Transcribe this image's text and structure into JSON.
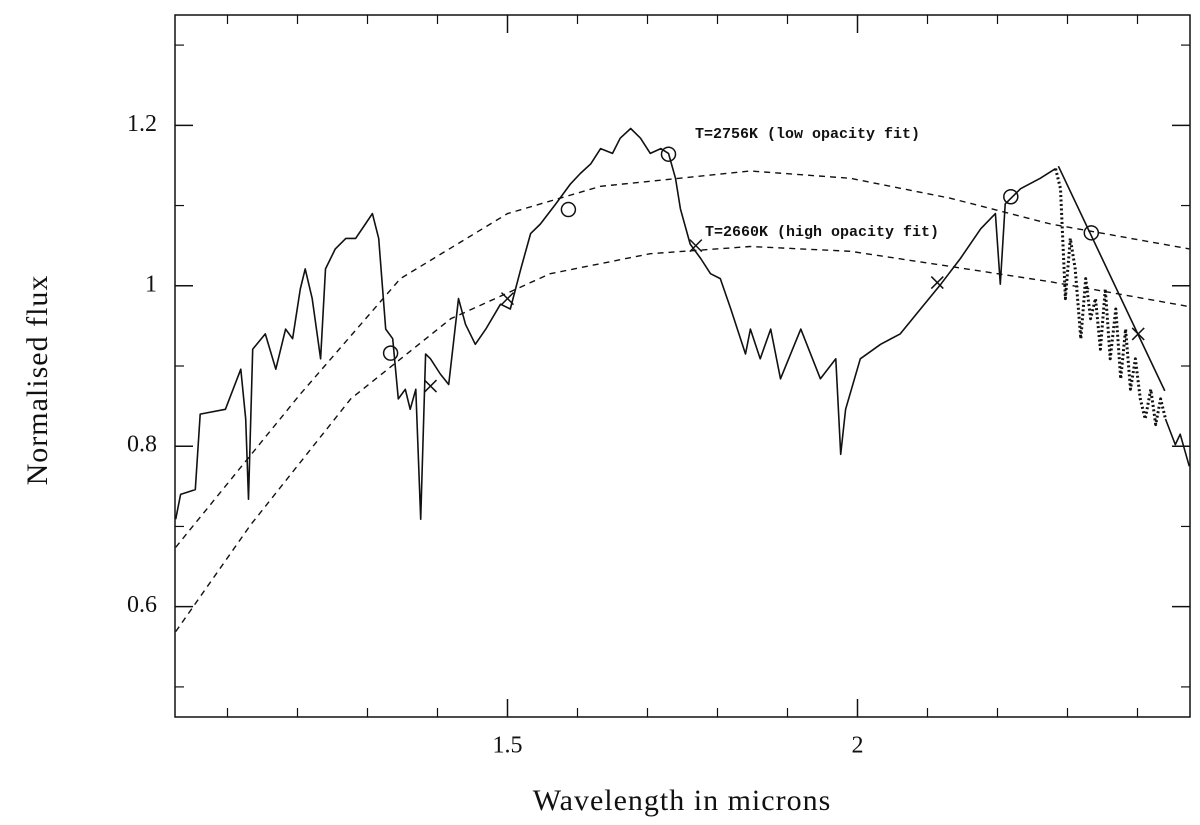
{
  "chart_data": {
    "type": "line",
    "xlabel": "Wavelength in microns",
    "ylabel": "Normalised flux",
    "xlim": [
      1.025,
      2.475
    ],
    "ylim": [
      0.4625,
      1.3375
    ],
    "xticks": [
      1.5,
      2
    ],
    "yticks": [
      0.6,
      0.8,
      1,
      1.2
    ],
    "xminor_ticks": [
      1.1,
      1.2,
      1.3,
      1.4,
      1.6,
      1.7,
      1.8,
      1.9,
      2.1,
      2.2,
      2.3,
      2.4
    ],
    "yminor_ticks": [
      0.5,
      0.7,
      0.9,
      1.1,
      1.3
    ],
    "annotations": [
      "T=2756K (low opacity fit)",
      "T=2660K (high opacity fit)"
    ],
    "color": "#111111",
    "series": [
      {
        "style": "solid",
        "x": [
          1.026,
          1.033,
          1.054,
          1.061,
          1.097,
          1.119,
          1.126,
          1.13,
          1.136,
          1.154,
          1.169,
          1.183,
          1.193,
          1.204,
          1.211,
          1.221,
          1.233,
          1.24,
          1.254,
          1.269,
          1.283,
          1.297,
          1.307,
          1.316,
          1.326,
          1.336,
          1.344,
          1.354,
          1.361,
          1.369,
          1.376,
          1.383,
          1.39,
          1.404,
          1.416,
          1.43,
          1.44,
          1.454,
          1.469,
          1.49,
          1.504,
          1.519,
          1.533,
          1.547,
          1.569,
          1.59,
          1.604,
          1.619,
          1.633,
          1.65,
          1.661,
          1.676,
          1.69,
          1.704,
          1.719,
          1.73,
          1.74,
          1.747,
          1.761,
          1.776,
          1.79,
          1.804,
          1.819,
          1.84,
          1.847,
          1.861,
          1.876,
          1.89,
          1.919,
          1.947,
          1.969,
          1.976,
          1.983,
          2.004,
          2.033,
          2.061,
          2.09,
          2.119,
          2.147,
          2.176,
          2.197,
          2.204,
          2.211,
          2.233,
          2.261,
          2.283,
          2.36,
          2.44,
          2.454,
          2.461,
          2.474
        ],
        "values": [
          0.709,
          0.74,
          0.746,
          0.84,
          0.846,
          0.896,
          0.834,
          0.734,
          0.921,
          0.94,
          0.896,
          0.946,
          0.934,
          0.996,
          1.021,
          0.984,
          0.909,
          1.021,
          1.046,
          1.059,
          1.059,
          1.077,
          1.09,
          1.059,
          0.946,
          0.934,
          0.859,
          0.871,
          0.846,
          0.871,
          0.709,
          0.915,
          0.909,
          0.89,
          0.877,
          0.984,
          0.952,
          0.927,
          0.946,
          0.977,
          0.971,
          1.021,
          1.065,
          1.077,
          1.102,
          1.127,
          1.14,
          1.152,
          1.171,
          1.165,
          1.184,
          1.196,
          1.184,
          1.165,
          1.171,
          1.165,
          1.134,
          1.096,
          1.052,
          1.034,
          1.015,
          1.009,
          0.971,
          0.915,
          0.946,
          0.909,
          0.946,
          0.884,
          0.946,
          0.884,
          0.909,
          0.79,
          0.846,
          0.909,
          0.927,
          0.94,
          0.971,
          1.002,
          1.034,
          1.071,
          1.09,
          1.002,
          1.102,
          1.121,
          1.134,
          1.146,
          null,
          0.834,
          0.802,
          0.815,
          0.775
        ]
      },
      {
        "style": "dotted",
        "x": [
          2.283,
          2.29,
          2.297,
          2.304,
          2.311,
          2.319,
          2.326,
          2.333,
          2.34,
          2.347,
          2.354,
          2.361,
          2.369,
          2.376,
          2.383,
          2.39,
          2.397,
          2.404,
          2.411,
          2.419,
          2.426,
          2.433,
          2.44
        ],
        "values": [
          1.146,
          1.121,
          0.984,
          1.059,
          1.021,
          0.934,
          1.009,
          0.959,
          0.984,
          0.921,
          0.996,
          0.909,
          0.971,
          0.884,
          0.946,
          0.871,
          0.909,
          0.859,
          0.834,
          0.871,
          0.827,
          0.859,
          0.834
        ]
      },
      {
        "style": "solid",
        "x": [
          2.287,
          2.439
        ],
        "values": [
          1.149,
          0.869
        ]
      },
      {
        "style": "dashed",
        "x": [
          1.026,
          1.204,
          1.347,
          1.5,
          1.633,
          1.847,
          1.99,
          2.133,
          2.276,
          2.474
        ],
        "values": [
          0.674,
          0.865,
          1.009,
          1.09,
          1.124,
          1.143,
          1.134,
          1.109,
          1.077,
          1.046
        ]
      },
      {
        "style": "dashed",
        "x": [
          1.026,
          1.133,
          1.276,
          1.419,
          1.561,
          1.704,
          1.847,
          1.99,
          2.133,
          2.276,
          2.474
        ],
        "values": [
          0.569,
          0.702,
          0.859,
          0.959,
          1.015,
          1.04,
          1.049,
          1.043,
          1.024,
          1.005,
          0.974
        ]
      },
      {
        "style": "circle",
        "x": [
          1.333,
          1.587,
          1.73,
          2.219,
          2.334
        ],
        "values": [
          0.916,
          1.095,
          1.164,
          1.111,
          1.066
        ]
      },
      {
        "style": "cross",
        "x": [
          1.39,
          1.5,
          1.769,
          2.114,
          2.401
        ],
        "values": [
          0.875,
          0.984,
          1.05,
          1.004,
          0.94
        ]
      }
    ]
  }
}
